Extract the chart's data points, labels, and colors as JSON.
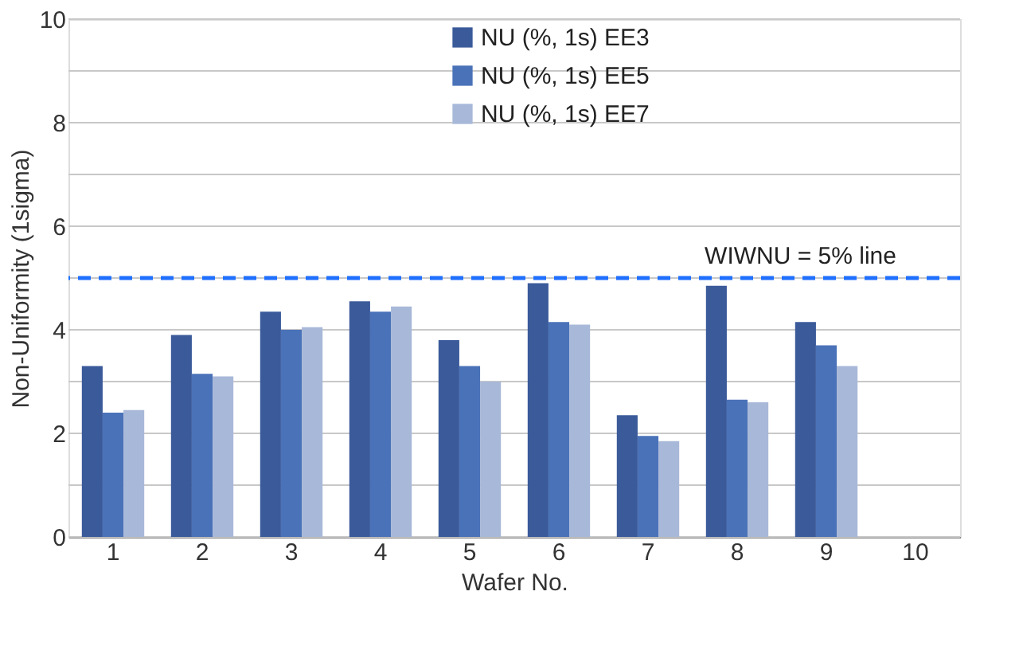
{
  "chart_data": {
    "type": "bar",
    "xlabel": "Wafer No.",
    "ylabel": "Non-Uniformity (1sigma)",
    "categories": [
      "1",
      "2",
      "3",
      "4",
      "5",
      "6",
      "7",
      "8",
      "9",
      "10"
    ],
    "series": [
      {
        "name": "NU (%, 1s) EE3",
        "color": "#3a5a9a",
        "values": [
          3.3,
          3.9,
          4.35,
          4.55,
          3.8,
          4.9,
          2.35,
          4.85,
          4.15,
          null
        ]
      },
      {
        "name": "NU (%, 1s) EE5",
        "color": "#4a72b8",
        "values": [
          2.4,
          3.15,
          4.0,
          4.35,
          3.3,
          4.15,
          1.95,
          2.65,
          3.7,
          null
        ]
      },
      {
        "name": "NU (%, 1s) EE7",
        "color": "#a8b8d8",
        "values": [
          2.45,
          3.1,
          4.05,
          4.45,
          3.0,
          4.1,
          1.85,
          2.6,
          3.3,
          null
        ]
      }
    ],
    "ylim": [
      0,
      10
    ],
    "yticks": [
      0,
      {
        "value": 1,
        "label": null
      },
      2,
      {
        "value": 3,
        "label": null
      },
      4,
      {
        "value": 5,
        "label": null
      },
      6,
      {
        "value": 7,
        "label": null
      },
      8,
      {
        "value": 9,
        "label": null
      },
      10
    ],
    "ref_lines": [
      {
        "axis": "y",
        "value": 5,
        "label": "WIWNU = 5% line",
        "color": "#1f6fff",
        "line_style": "dashed"
      }
    ],
    "grid": "y",
    "legend": "top"
  }
}
